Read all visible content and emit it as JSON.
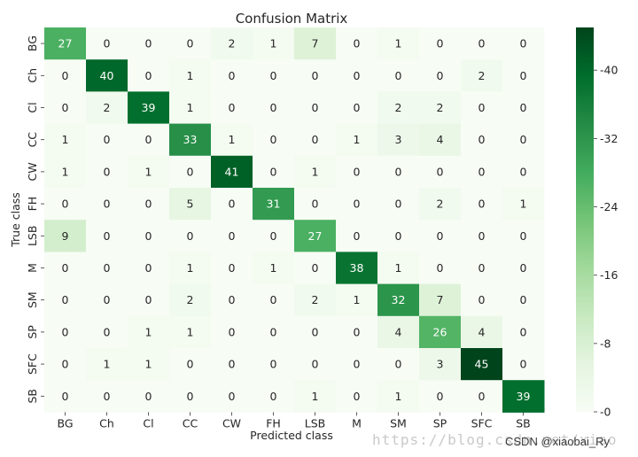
{
  "chart_data": {
    "type": "heatmap",
    "title": "Confusion Matrix",
    "xlabel": "Predicted class",
    "ylabel": "True class",
    "x_categories": [
      "BG",
      "Ch",
      "Cl",
      "CC",
      "CW",
      "FH",
      "LSB",
      "M",
      "SM",
      "SP",
      "SFC",
      "SB"
    ],
    "y_categories": [
      "BG",
      "Ch",
      "Cl",
      "CC",
      "CW",
      "FH",
      "LSB",
      "M",
      "SM",
      "SP",
      "SFC",
      "SB"
    ],
    "values": [
      [
        27,
        0,
        0,
        0,
        2,
        1,
        7,
        0,
        1,
        0,
        0,
        0
      ],
      [
        0,
        40,
        0,
        1,
        0,
        0,
        0,
        0,
        0,
        0,
        2,
        0
      ],
      [
        0,
        2,
        39,
        1,
        0,
        0,
        0,
        0,
        2,
        2,
        0,
        0
      ],
      [
        1,
        0,
        0,
        33,
        1,
        0,
        0,
        1,
        3,
        4,
        0,
        0
      ],
      [
        1,
        0,
        1,
        0,
        41,
        0,
        1,
        0,
        0,
        0,
        0,
        0
      ],
      [
        0,
        0,
        0,
        5,
        0,
        31,
        0,
        0,
        0,
        2,
        0,
        1
      ],
      [
        9,
        0,
        0,
        0,
        0,
        0,
        27,
        0,
        0,
        0,
        0,
        0
      ],
      [
        0,
        0,
        0,
        1,
        0,
        1,
        0,
        38,
        1,
        0,
        0,
        0
      ],
      [
        0,
        0,
        0,
        2,
        0,
        0,
        2,
        1,
        32,
        7,
        0,
        0
      ],
      [
        0,
        0,
        1,
        1,
        0,
        0,
        0,
        0,
        4,
        26,
        4,
        0
      ],
      [
        0,
        1,
        1,
        0,
        0,
        0,
        0,
        0,
        0,
        3,
        45,
        0
      ],
      [
        0,
        0,
        0,
        0,
        0,
        0,
        1,
        0,
        1,
        0,
        0,
        39
      ]
    ],
    "color_range": [
      0,
      45
    ],
    "colorbar_ticks": [
      0,
      8,
      16,
      24,
      32,
      40
    ],
    "colormap": "Greens",
    "grid": false
  },
  "watermark": {
    "url_text": "https://blog.csdn.net/xiao",
    "author_text": "CSDN @xiaobai_Ry"
  }
}
